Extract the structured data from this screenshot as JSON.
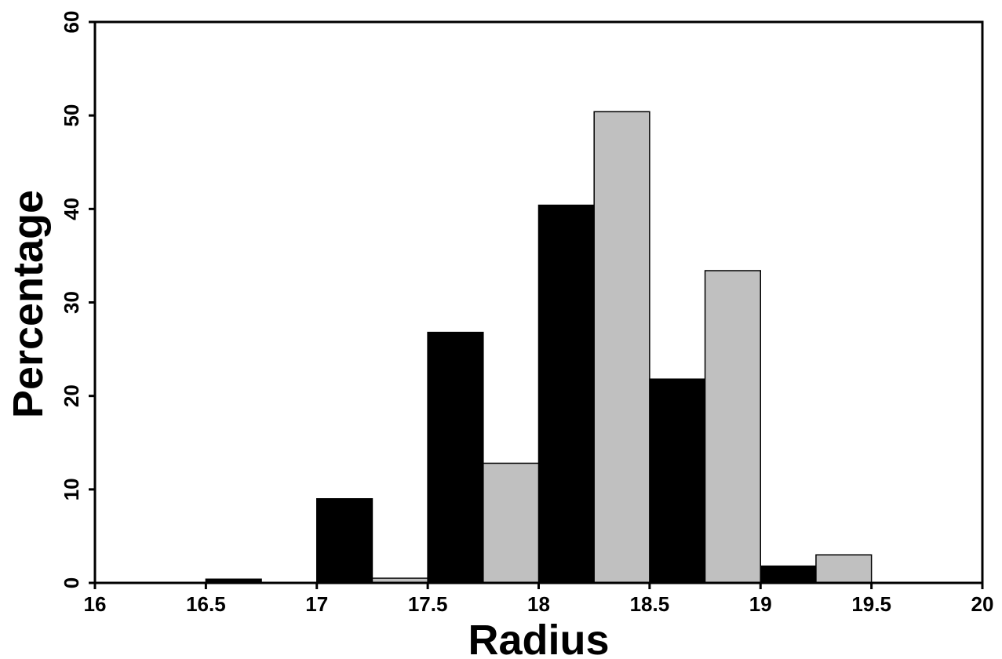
{
  "chart_data": {
    "type": "bar",
    "title": "",
    "xlabel": "Radius",
    "ylabel": "Percentage",
    "xlim": [
      16,
      20
    ],
    "ylim": [
      0,
      60
    ],
    "x_ticks": [
      "16",
      "16.5",
      "17",
      "17.5",
      "18",
      "18.5",
      "19",
      "19.5",
      "20"
    ],
    "y_ticks": [
      "0",
      "10",
      "20",
      "30",
      "40",
      "50",
      "60"
    ],
    "grid": false,
    "legend": "none",
    "bin_width": 0.25,
    "series": [
      {
        "color": "#000000",
        "bins": [
          {
            "start": 16.5,
            "value": 0.4
          },
          {
            "start": 17.0,
            "value": 9.0
          },
          {
            "start": 17.5,
            "value": 26.8
          },
          {
            "start": 18.0,
            "value": 40.4
          },
          {
            "start": 18.5,
            "value": 21.8
          },
          {
            "start": 19.0,
            "value": 1.8
          }
        ]
      },
      {
        "color": "#c0c0c0",
        "bins": [
          {
            "start": 17.25,
            "value": 0.5
          },
          {
            "start": 17.75,
            "value": 12.8
          },
          {
            "start": 18.25,
            "value": 50.4
          },
          {
            "start": 18.75,
            "value": 33.4
          },
          {
            "start": 19.25,
            "value": 3.0
          }
        ]
      }
    ]
  }
}
